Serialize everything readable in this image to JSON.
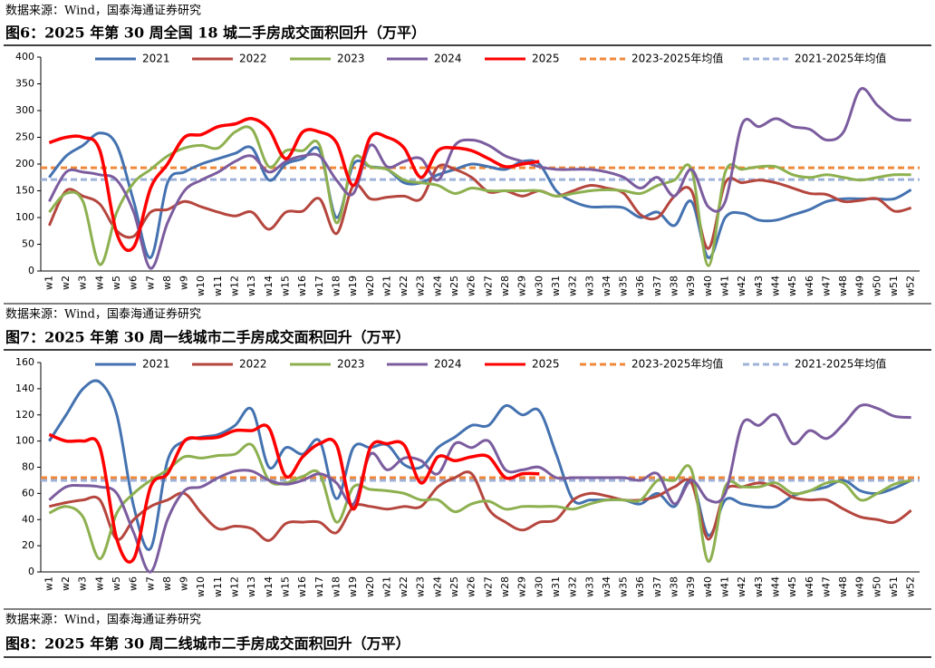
{
  "header_source": "数据来源：Wind，国泰海通证券研究",
  "chart_data": [
    {
      "type": "line",
      "title": "图6：2025 年第 30 周全国 18 城二手房成交面积回升（万平）",
      "source": "数据来源：Wind，国泰海通证券研究",
      "categories": [
        "w1",
        "w2",
        "w3",
        "w4",
        "w5",
        "w6",
        "w7",
        "w8",
        "w9",
        "w10",
        "w11",
        "w12",
        "w13",
        "w14",
        "w15",
        "w16",
        "w17",
        "w18",
        "w19",
        "w20",
        "w21",
        "w22",
        "w23",
        "w24",
        "w25",
        "w26",
        "w27",
        "w28",
        "w29",
        "w30",
        "w31",
        "w32",
        "w33",
        "w34",
        "w35",
        "w36",
        "w37",
        "w38",
        "w39",
        "w40",
        "w41",
        "w42",
        "w43",
        "w44",
        "w45",
        "w46",
        "w47",
        "w48",
        "w49",
        "w50",
        "w51",
        "w52"
      ],
      "ylim": [
        0,
        400
      ],
      "yticks": [
        0,
        50,
        100,
        150,
        200,
        250,
        300,
        350,
        400
      ],
      "series": [
        {
          "name": "2021",
          "color": "#4472b0",
          "values": [
            175,
            215,
            235,
            258,
            235,
            130,
            25,
            165,
            185,
            200,
            210,
            220,
            230,
            170,
            200,
            210,
            225,
            100,
            200,
            195,
            190,
            165,
            165,
            180,
            190,
            200,
            195,
            190,
            205,
            200,
            150,
            130,
            120,
            120,
            118,
            100,
            110,
            85,
            130,
            25,
            100,
            108,
            95,
            95,
            105,
            115,
            130,
            135,
            135,
            135,
            135,
            152
          ]
        },
        {
          "name": "2022",
          "color": "#b5463e",
          "values": [
            85,
            150,
            140,
            125,
            75,
            65,
            110,
            115,
            130,
            120,
            110,
            103,
            110,
            78,
            110,
            112,
            135,
            70,
            160,
            135,
            138,
            140,
            135,
            195,
            190,
            175,
            148,
            150,
            140,
            150,
            140,
            150,
            160,
            155,
            145,
            105,
            100,
            140,
            150,
            42,
            165,
            165,
            170,
            165,
            155,
            145,
            143,
            130,
            132,
            135,
            112,
            118
          ]
        },
        {
          "name": "2023",
          "color": "#8db04f",
          "values": [
            110,
            145,
            130,
            12,
            110,
            165,
            190,
            215,
            230,
            235,
            230,
            260,
            265,
            195,
            225,
            225,
            235,
            90,
            210,
            195,
            190,
            170,
            165,
            160,
            145,
            155,
            150,
            150,
            150,
            150,
            140,
            145,
            150,
            152,
            150,
            145,
            160,
            170,
            190,
            10,
            185,
            190,
            195,
            195,
            180,
            175,
            180,
            175,
            170,
            175,
            180,
            180
          ]
        },
        {
          "name": "2024",
          "color": "#7b5c9e",
          "values": [
            130,
            185,
            185,
            180,
            170,
            110,
            5,
            90,
            150,
            170,
            185,
            205,
            215,
            185,
            205,
            215,
            215,
            170,
            145,
            235,
            195,
            205,
            210,
            170,
            235,
            245,
            235,
            215,
            205,
            195,
            190,
            190,
            190,
            185,
            175,
            155,
            175,
            140,
            190,
            120,
            130,
            275,
            270,
            285,
            270,
            265,
            245,
            260,
            340,
            310,
            285,
            282
          ]
        },
        {
          "name": "2025",
          "color": "#ff0000",
          "values": [
            240,
            250,
            250,
            225,
            70,
            45,
            155,
            200,
            250,
            255,
            270,
            275,
            285,
            265,
            210,
            260,
            260,
            240,
            160,
            250,
            250,
            230,
            175,
            225,
            230,
            225,
            210,
            195,
            200,
            205,
            null,
            null,
            null,
            null,
            null,
            null,
            null,
            null,
            null,
            null,
            null,
            null,
            null,
            null,
            null,
            null,
            null,
            null,
            null,
            null,
            null,
            null
          ]
        }
      ],
      "reference_lines": [
        {
          "name": "2023-2025年均值",
          "color": "#f0883a",
          "value": 193
        },
        {
          "name": "2021-2025年均值",
          "color": "#9fb2d8",
          "value": 171
        }
      ]
    },
    {
      "type": "line",
      "title": "图7：2025 年第 30 周一线城市二手房成交面积回升（万平）",
      "source": "数据来源：Wind，国泰海通证券研究",
      "categories": [
        "w1",
        "w2",
        "w3",
        "w4",
        "w5",
        "w6",
        "w7",
        "w8",
        "w9",
        "w10",
        "w11",
        "w12",
        "w13",
        "w14",
        "w15",
        "w16",
        "w17",
        "w18",
        "w19",
        "w20",
        "w21",
        "w22",
        "w23",
        "w24",
        "w25",
        "w26",
        "w27",
        "w28",
        "w29",
        "w30",
        "w31",
        "w32",
        "w33",
        "w34",
        "w35",
        "w36",
        "w37",
        "w38",
        "w39",
        "w40",
        "w41",
        "w42",
        "w43",
        "w44",
        "w45",
        "w46",
        "w47",
        "w48",
        "w49",
        "w50",
        "w51",
        "w52"
      ],
      "ylim": [
        0,
        160
      ],
      "yticks": [
        0,
        20,
        40,
        60,
        80,
        100,
        120,
        140,
        160
      ],
      "series": [
        {
          "name": "2021",
          "color": "#4472b0",
          "values": [
            100,
            120,
            140,
            145,
            120,
            50,
            18,
            85,
            100,
            103,
            105,
            112,
            124,
            80,
            95,
            90,
            100,
            56,
            95,
            95,
            97,
            82,
            80,
            95,
            103,
            112,
            112,
            127,
            120,
            123,
            90,
            55,
            55,
            55,
            55,
            52,
            60,
            50,
            70,
            28,
            55,
            52,
            50,
            50,
            58,
            62,
            65,
            70,
            62,
            60,
            64,
            70
          ]
        },
        {
          "name": "2022",
          "color": "#b5463e",
          "values": [
            50,
            53,
            55,
            55,
            25,
            40,
            50,
            55,
            60,
            45,
            33,
            35,
            33,
            24,
            37,
            38,
            38,
            30,
            50,
            50,
            48,
            50,
            50,
            65,
            72,
            75,
            48,
            38,
            32,
            38,
            40,
            55,
            60,
            58,
            55,
            55,
            58,
            65,
            68,
            25,
            62,
            65,
            68,
            65,
            57,
            55,
            55,
            48,
            42,
            40,
            38,
            47
          ]
        },
        {
          "name": "2023",
          "color": "#8db04f",
          "values": [
            45,
            50,
            42,
            10,
            45,
            60,
            70,
            78,
            88,
            87,
            89,
            90,
            97,
            70,
            68,
            73,
            75,
            38,
            65,
            63,
            62,
            60,
            55,
            55,
            46,
            52,
            54,
            48,
            50,
            50,
            50,
            48,
            52,
            55,
            55,
            55,
            70,
            70,
            78,
            8,
            65,
            65,
            65,
            68,
            60,
            62,
            68,
            68,
            55,
            60,
            67,
            70
          ]
        },
        {
          "name": "2024",
          "color": "#7b5c9e",
          "values": [
            55,
            65,
            66,
            65,
            60,
            30,
            0,
            40,
            62,
            65,
            72,
            77,
            77,
            70,
            67,
            70,
            75,
            68,
            52,
            90,
            78,
            87,
            85,
            75,
            98,
            95,
            100,
            78,
            78,
            80,
            72,
            72,
            72,
            72,
            72,
            70,
            75,
            52,
            70,
            55,
            60,
            113,
            112,
            120,
            98,
            108,
            102,
            113,
            127,
            125,
            119,
            118
          ]
        },
        {
          "name": "2025",
          "color": "#ff0000",
          "values": [
            105,
            100,
            100,
            95,
            25,
            10,
            65,
            75,
            100,
            102,
            103,
            108,
            108,
            110,
            73,
            88,
            98,
            97,
            48,
            95,
            98,
            97,
            68,
            88,
            85,
            88,
            88,
            72,
            75,
            75,
            null,
            null,
            null,
            null,
            null,
            null,
            null,
            null,
            null,
            null,
            null,
            null,
            null,
            null,
            null,
            null,
            null,
            null,
            null,
            null,
            null,
            null
          ]
        }
      ],
      "reference_lines": [
        {
          "name": "2023-2025年均值",
          "color": "#f0883a",
          "value": 72
        },
        {
          "name": "2021-2025年均值",
          "color": "#9fb2d8",
          "value": 70
        }
      ]
    }
  ],
  "next_figure_title": "图8：2025 年第 30 周二线城市二手房成交面积回升（万平）"
}
